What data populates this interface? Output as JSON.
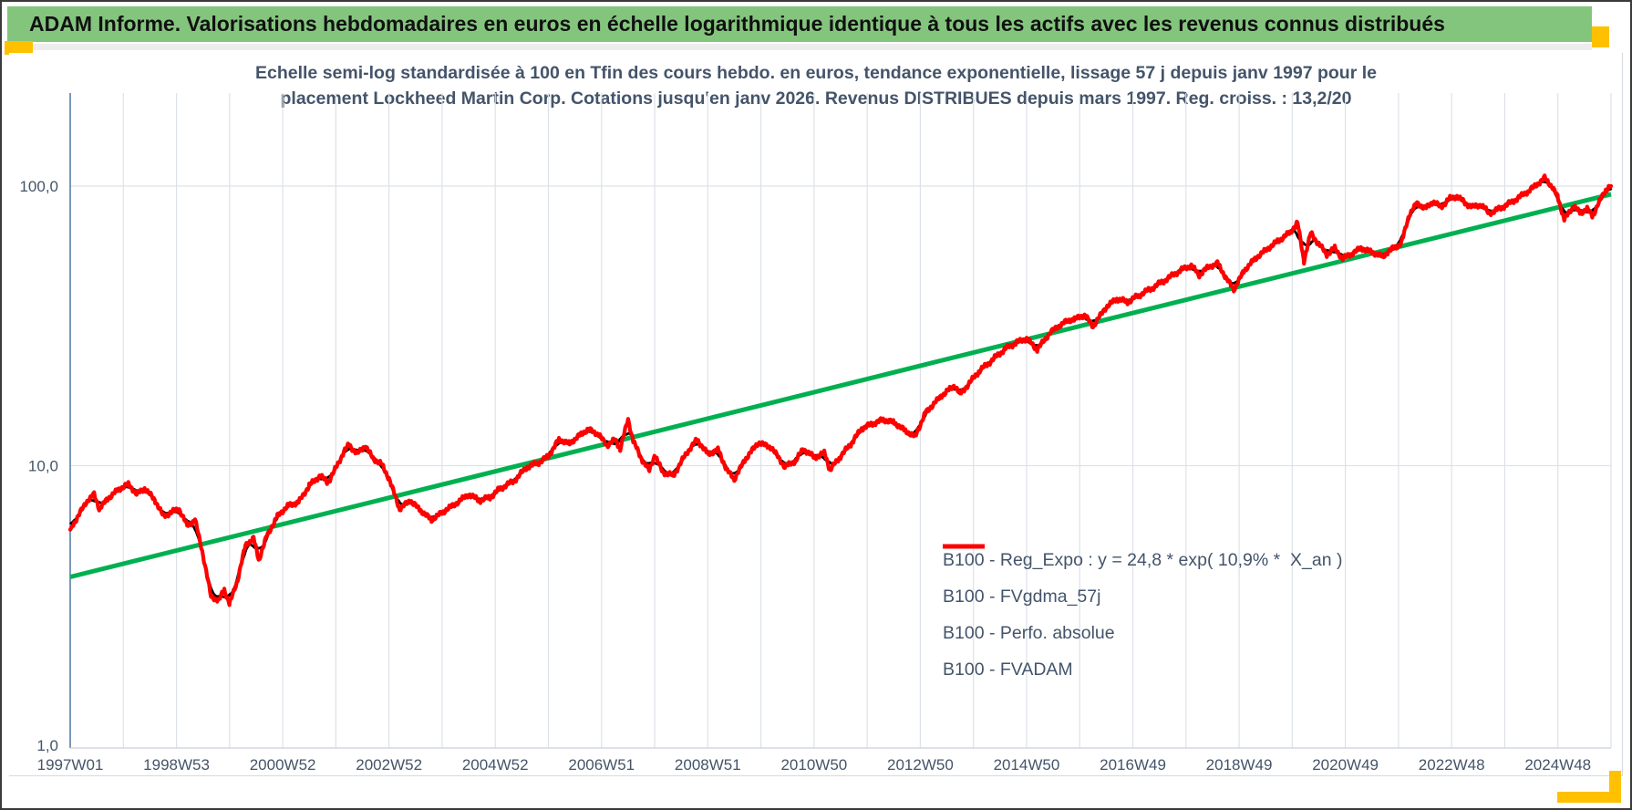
{
  "header": {
    "title": "ADAM Informe. Valorisations hebdomadaires en euros en échelle logarithmique identique à tous les actifs avec les revenus connus distribués"
  },
  "colors": {
    "header_green": "#84C57E",
    "gold": "#FFC000",
    "title_text": "#44546A",
    "axis_text": "#44546A",
    "gridline": "#dde2e8",
    "y_axis_line": "#6E8EB0",
    "x_axis_line": "#c9d1da",
    "trend_green": "#00B050",
    "main_red": "#FF0000",
    "smooth_black": "#000000",
    "dotted_darkred": "#C00000"
  },
  "chart_data": {
    "type": "line",
    "title_line1": "Echelle semi-log standardisée à 100 en Tfin des cours hebdo. en euros, tendance exponentielle, lissage 57 j depuis janv 1997 pour le",
    "title_line2": "placement Lockheed Martin Corp. Cotations jusqu'en janv 2026. Revenus DISTRIBUES depuis mars 1997. Reg. croiss. : 13,2/20",
    "x_axis": {
      "start_year": 1997,
      "end_year": 2026,
      "tick_step_years": 2,
      "tick_labels": [
        "1997W01",
        "1998W53",
        "2000W52",
        "2002W52",
        "2004W52",
        "2006W51",
        "2008W51",
        "2010W50",
        "2012W50",
        "2014W50",
        "2016W49",
        "2018W49",
        "2020W49",
        "2022W48",
        "2024W48"
      ]
    },
    "y_axis": {
      "scale": "log10",
      "ylim": [
        1,
        220
      ],
      "ticks": [
        {
          "label": "100,0",
          "value": 100
        },
        {
          "label": "10,0",
          "value": 10
        },
        {
          "label": "1,0",
          "value": 1
        }
      ]
    },
    "legend_position": "inside-right-lower",
    "grid": true,
    "series": [
      {
        "name": "B100 - Reg_Expo : y = 24,8 * exp( 10,9% *  X_an )",
        "role": "trend",
        "color": "#00B050",
        "width": 5,
        "points": [
          [
            1997.0,
            4.0
          ],
          [
            2026.0,
            93.5
          ]
        ]
      },
      {
        "name": "B100 - FVgdma_57j",
        "role": "smoothed",
        "color": "#000000",
        "width": 2.8,
        "derived_from": "B100 - FVADAM",
        "smoothing_days": 57
      },
      {
        "name": "B100 - Perfo. absolue",
        "role": "dotted-duplicate",
        "color": "#C00000",
        "width": 1.4,
        "dash": "1.5 2.4",
        "derived_from": "B100 - FVADAM"
      },
      {
        "name": "B100 - FVADAM",
        "role": "main",
        "color": "#FF0000",
        "width": 4.2,
        "points": [
          [
            1997.0,
            5.9
          ],
          [
            1997.15,
            6.6
          ],
          [
            1997.3,
            7.4
          ],
          [
            1997.45,
            7.9
          ],
          [
            1997.55,
            7.0
          ],
          [
            1997.7,
            7.6
          ],
          [
            1997.9,
            8.2
          ],
          [
            1998.1,
            8.6
          ],
          [
            1998.25,
            7.9
          ],
          [
            1998.4,
            8.3
          ],
          [
            1998.6,
            7.5
          ],
          [
            1998.75,
            6.6
          ],
          [
            1998.9,
            6.8
          ],
          [
            1999.05,
            7.0
          ],
          [
            1999.2,
            6.1
          ],
          [
            1999.35,
            6.4
          ],
          [
            1999.5,
            4.8
          ],
          [
            1999.65,
            3.4
          ],
          [
            1999.8,
            3.3
          ],
          [
            1999.9,
            3.6
          ],
          [
            2000.0,
            3.2
          ],
          [
            2000.15,
            3.9
          ],
          [
            2000.3,
            5.2
          ],
          [
            2000.45,
            5.5
          ],
          [
            2000.55,
            4.6
          ],
          [
            2000.7,
            5.6
          ],
          [
            2000.9,
            6.6
          ],
          [
            2001.1,
            7.2
          ],
          [
            2001.3,
            7.4
          ],
          [
            2001.5,
            8.5
          ],
          [
            2001.7,
            9.2
          ],
          [
            2001.85,
            8.7
          ],
          [
            2002.0,
            9.8
          ],
          [
            2002.15,
            11.2
          ],
          [
            2002.25,
            11.9
          ],
          [
            2002.4,
            11.0
          ],
          [
            2002.55,
            11.8
          ],
          [
            2002.7,
            10.6
          ],
          [
            2002.85,
            10.2
          ],
          [
            2003.0,
            9.0
          ],
          [
            2003.2,
            7.0
          ],
          [
            2003.4,
            7.5
          ],
          [
            2003.6,
            6.9
          ],
          [
            2003.8,
            6.4
          ],
          [
            2004.0,
            6.8
          ],
          [
            2004.25,
            7.3
          ],
          [
            2004.5,
            7.9
          ],
          [
            2004.7,
            7.5
          ],
          [
            2004.9,
            7.7
          ],
          [
            2005.1,
            8.3
          ],
          [
            2005.35,
            8.8
          ],
          [
            2005.6,
            9.9
          ],
          [
            2005.8,
            10.2
          ],
          [
            2006.0,
            10.8
          ],
          [
            2006.2,
            12.4
          ],
          [
            2006.4,
            12.0
          ],
          [
            2006.6,
            12.9
          ],
          [
            2006.75,
            13.5
          ],
          [
            2006.95,
            12.9
          ],
          [
            2007.1,
            11.8
          ],
          [
            2007.25,
            12.4
          ],
          [
            2007.35,
            11.5
          ],
          [
            2007.5,
            14.6
          ],
          [
            2007.6,
            12.2
          ],
          [
            2007.75,
            10.6
          ],
          [
            2007.9,
            9.6
          ],
          [
            2008.0,
            10.9
          ],
          [
            2008.15,
            9.5
          ],
          [
            2008.35,
            9.2
          ],
          [
            2008.6,
            11.1
          ],
          [
            2008.8,
            12.4
          ],
          [
            2009.0,
            11.0
          ],
          [
            2009.2,
            11.4
          ],
          [
            2009.35,
            9.7
          ],
          [
            2009.5,
            8.95
          ],
          [
            2009.7,
            10.5
          ],
          [
            2009.95,
            12.1
          ],
          [
            2010.2,
            11.6
          ],
          [
            2010.45,
            9.9
          ],
          [
            2010.65,
            10.4
          ],
          [
            2010.8,
            11.5
          ],
          [
            2011.0,
            10.7
          ],
          [
            2011.2,
            11.1
          ],
          [
            2011.3,
            9.65
          ],
          [
            2011.5,
            10.8
          ],
          [
            2011.7,
            12.0
          ],
          [
            2011.9,
            13.6
          ],
          [
            2012.1,
            14.1
          ],
          [
            2012.3,
            14.6
          ],
          [
            2012.5,
            14.3
          ],
          [
            2012.7,
            13.4
          ],
          [
            2012.9,
            12.7
          ],
          [
            2013.1,
            15.5
          ],
          [
            2013.4,
            17.8
          ],
          [
            2013.65,
            19.4
          ],
          [
            2013.75,
            18.0
          ],
          [
            2014.1,
            21.7
          ],
          [
            2014.4,
            24.3
          ],
          [
            2014.6,
            26.2
          ],
          [
            2014.8,
            27.5
          ],
          [
            2015.0,
            28.5
          ],
          [
            2015.2,
            26.0
          ],
          [
            2015.45,
            30.0
          ],
          [
            2015.7,
            32.5
          ],
          [
            2015.9,
            33.5
          ],
          [
            2016.1,
            34.5
          ],
          [
            2016.25,
            31.5
          ],
          [
            2016.5,
            37.0
          ],
          [
            2016.7,
            39.5
          ],
          [
            2016.9,
            38.5
          ],
          [
            2017.1,
            40.5
          ],
          [
            2017.35,
            43.0
          ],
          [
            2017.6,
            46.0
          ],
          [
            2017.9,
            50.0
          ],
          [
            2018.1,
            52.0
          ],
          [
            2018.25,
            48.0
          ],
          [
            2018.4,
            51.0
          ],
          [
            2018.6,
            53.0
          ],
          [
            2018.75,
            47.0
          ],
          [
            2018.9,
            42.7
          ],
          [
            2019.1,
            50.0
          ],
          [
            2019.3,
            55.0
          ],
          [
            2019.55,
            60.0
          ],
          [
            2019.75,
            64.0
          ],
          [
            2019.95,
            68.0
          ],
          [
            2020.1,
            74.0
          ],
          [
            2020.22,
            54.0
          ],
          [
            2020.35,
            68.0
          ],
          [
            2020.5,
            62.0
          ],
          [
            2020.65,
            57.0
          ],
          [
            2020.8,
            60.0
          ],
          [
            2020.95,
            55.0
          ],
          [
            2021.1,
            57.0
          ],
          [
            2021.3,
            60.0
          ],
          [
            2021.5,
            58.0
          ],
          [
            2021.7,
            56.0
          ],
          [
            2021.9,
            60.0
          ],
          [
            2022.05,
            62.0
          ],
          [
            2022.2,
            79.0
          ],
          [
            2022.35,
            87.0
          ],
          [
            2022.5,
            83.0
          ],
          [
            2022.65,
            88.0
          ],
          [
            2022.8,
            84.0
          ],
          [
            2022.95,
            90.0
          ],
          [
            2023.1,
            92.0
          ],
          [
            2023.25,
            87.0
          ],
          [
            2023.4,
            84.0
          ],
          [
            2023.55,
            86.0
          ],
          [
            2023.7,
            80.0
          ],
          [
            2023.85,
            82.0
          ],
          [
            2024.0,
            85.0
          ],
          [
            2024.15,
            88.0
          ],
          [
            2024.3,
            92.0
          ],
          [
            2024.45,
            96.0
          ],
          [
            2024.6,
            101.0
          ],
          [
            2024.75,
            107.0
          ],
          [
            2024.9,
            99.0
          ],
          [
            2025.0,
            91.0
          ],
          [
            2025.12,
            76.0
          ],
          [
            2025.3,
            85.0
          ],
          [
            2025.42,
            80.0
          ],
          [
            2025.55,
            83.0
          ],
          [
            2025.65,
            78.0
          ],
          [
            2025.78,
            88.0
          ],
          [
            2025.9,
            97.0
          ],
          [
            2026.0,
            100.0
          ]
        ]
      }
    ]
  },
  "legend": {
    "items": [
      {
        "label": "B100 - Reg_Expo : y = 24,8 * exp( 10,9% *  X_an )",
        "swatch": "green-thick"
      },
      {
        "label": "B100 - FVgdma_57j",
        "swatch": "black-line"
      },
      {
        "label": "B100 - Perfo. absolue",
        "swatch": "red-dotted"
      },
      {
        "label": "B100 - FVADAM",
        "swatch": "red-thick"
      }
    ]
  }
}
